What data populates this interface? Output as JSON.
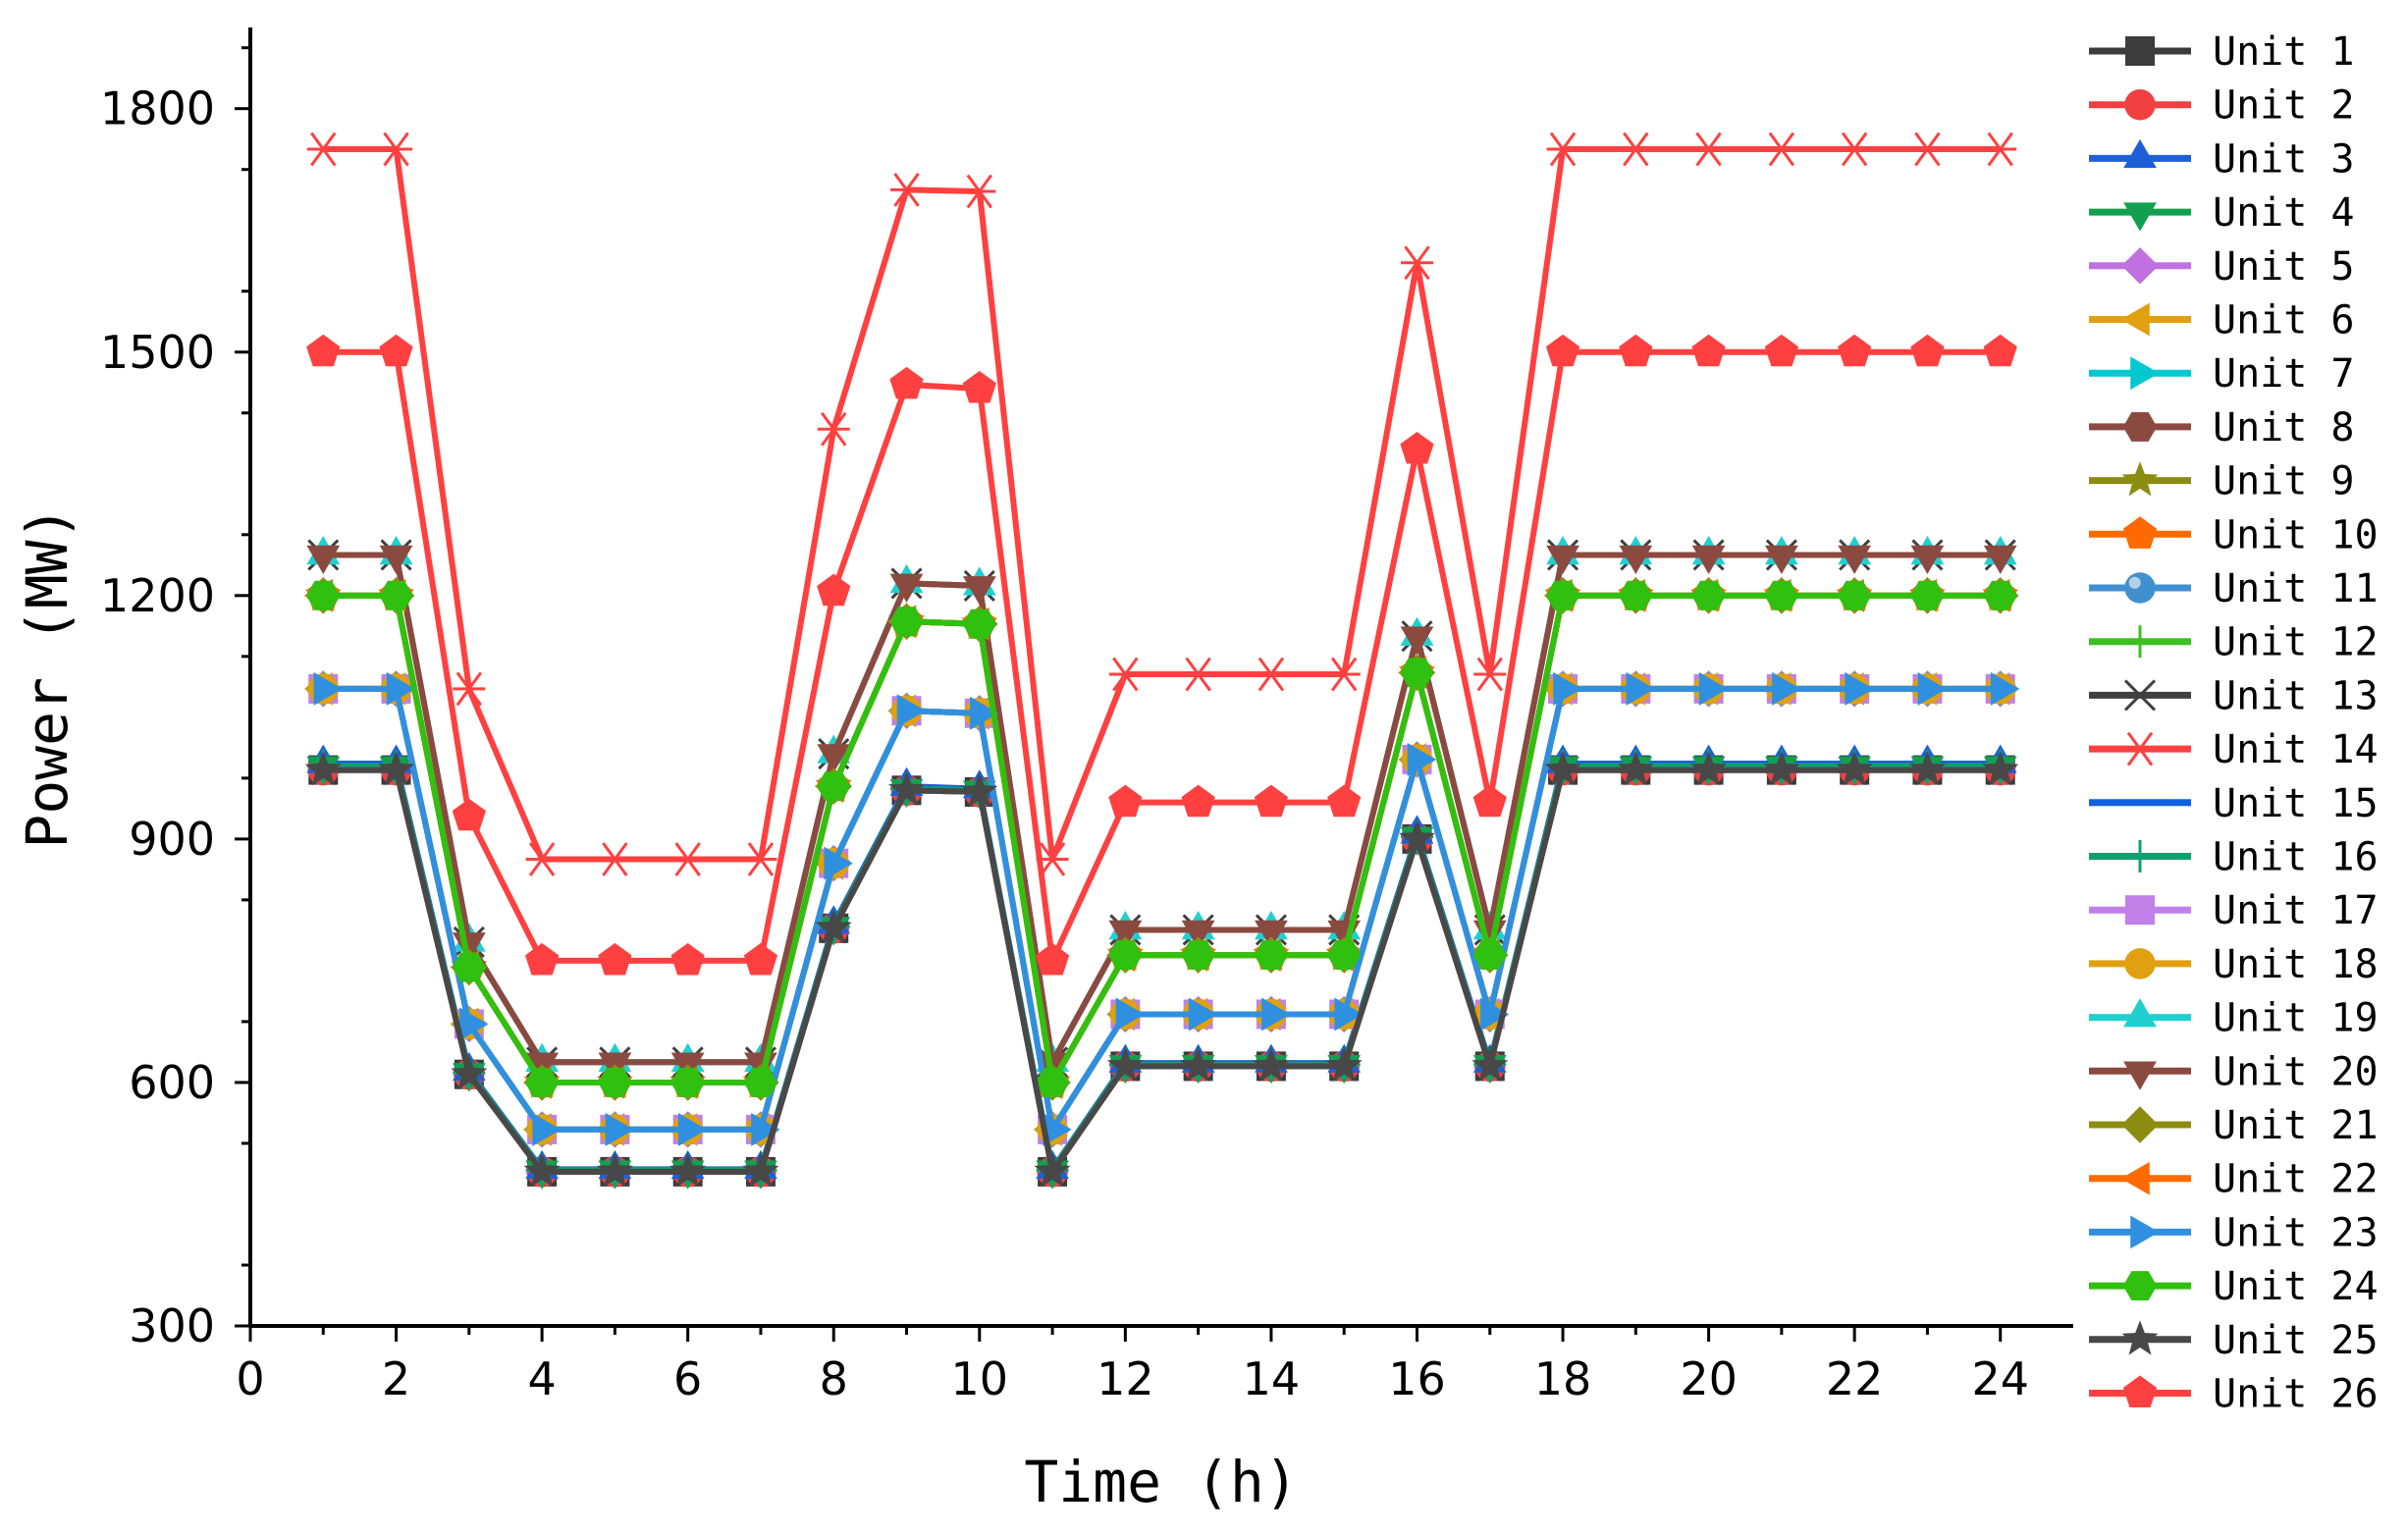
{
  "chart_data": {
    "type": "line",
    "xlabel": "Time (h)",
    "ylabel": "Power (MW)",
    "xlim": [
      0,
      25
    ],
    "ylim": [
      300,
      1900
    ],
    "x_ticks": [
      "0",
      "2",
      "4",
      "6",
      "8",
      "10",
      "12",
      "14",
      "16",
      "18",
      "20",
      "22",
      "24"
    ],
    "y_ticks": [
      "300",
      "600",
      "900",
      "1200",
      "1500",
      "1800"
    ],
    "legend_position": "right",
    "x": [
      1,
      2,
      3,
      4,
      5,
      6,
      7,
      8,
      9,
      10,
      11,
      12,
      13,
      14,
      15,
      16,
      17,
      18,
      19,
      20,
      21,
      22,
      23,
      24
    ],
    "series": [
      {
        "name": "Unit 1",
        "color": "#3c3c3c",
        "marker": "square",
        "values": [
          985,
          985,
          610,
          490,
          490,
          490,
          490,
          790,
          960,
          958,
          490,
          620,
          620,
          620,
          620,
          900,
          620,
          985,
          985,
          985,
          985,
          985,
          985,
          985
        ]
      },
      {
        "name": "Unit 2",
        "color": "#f04040",
        "marker": "circle",
        "values": [
          985,
          985,
          610,
          490,
          490,
          490,
          490,
          790,
          960,
          958,
          490,
          620,
          620,
          620,
          620,
          900,
          620,
          985,
          985,
          985,
          985,
          985,
          985,
          985
        ]
      },
      {
        "name": "Unit 3",
        "color": "#1e5fd8",
        "marker": "triangle-up",
        "values": [
          993,
          993,
          614,
          493,
          493,
          493,
          493,
          795,
          965,
          962,
          493,
          624,
          624,
          624,
          624,
          906,
          624,
          993,
          993,
          993,
          993,
          993,
          993,
          993
        ]
      },
      {
        "name": "Unit 4",
        "color": "#12a050",
        "marker": "triangle-down",
        "values": [
          990,
          990,
          612,
          492,
          492,
          492,
          492,
          792,
          962,
          960,
          492,
          622,
          622,
          622,
          622,
          903,
          622,
          990,
          990,
          990,
          990,
          990,
          990,
          990
        ]
      },
      {
        "name": "Unit 5",
        "color": "#c070e0",
        "marker": "diamond",
        "values": [
          1085,
          1085,
          672,
          542,
          542,
          542,
          542,
          870,
          1058,
          1055,
          542,
          684,
          684,
          684,
          684,
          998,
          684,
          1085,
          1085,
          1085,
          1085,
          1085,
          1085,
          1085
        ]
      },
      {
        "name": "Unit 6",
        "color": "#e0a010",
        "marker": "triangle-left",
        "values": [
          1085,
          1085,
          672,
          542,
          542,
          542,
          542,
          870,
          1058,
          1055,
          542,
          684,
          684,
          684,
          684,
          998,
          684,
          1085,
          1085,
          1085,
          1085,
          1085,
          1085,
          1085
        ]
      },
      {
        "name": "Unit 7",
        "color": "#00c8d0",
        "marker": "triangle-right",
        "values": [
          1085,
          1085,
          672,
          542,
          542,
          542,
          542,
          870,
          1058,
          1055,
          542,
          684,
          684,
          684,
          684,
          998,
          684,
          1085,
          1085,
          1085,
          1085,
          1085,
          1085,
          1085
        ]
      },
      {
        "name": "Unit 8",
        "color": "#8b4a40",
        "marker": "hexagon",
        "values": [
          1200,
          1200,
          742,
          600,
          600,
          600,
          600,
          965,
          1168,
          1165,
          600,
          757,
          757,
          757,
          757,
          1105,
          757,
          1200,
          1200,
          1200,
          1200,
          1200,
          1200,
          1200
        ]
      },
      {
        "name": "Unit 9",
        "color": "#8c8c10",
        "marker": "star",
        "values": [
          1200,
          1200,
          742,
          600,
          600,
          600,
          600,
          965,
          1168,
          1165,
          600,
          757,
          757,
          757,
          757,
          1105,
          757,
          1200,
          1200,
          1200,
          1200,
          1200,
          1200,
          1200
        ]
      },
      {
        "name": "Unit 10",
        "color": "#ff6a00",
        "marker": "pentagon",
        "values": [
          1200,
          1200,
          742,
          600,
          600,
          600,
          600,
          965,
          1168,
          1165,
          600,
          757,
          757,
          757,
          757,
          1105,
          757,
          1200,
          1200,
          1200,
          1200,
          1200,
          1200,
          1200
        ]
      },
      {
        "name": "Unit 11",
        "color": "#4090d0",
        "marker": "sphere",
        "values": [
          1085,
          1085,
          672,
          542,
          542,
          542,
          542,
          870,
          1058,
          1055,
          542,
          684,
          684,
          684,
          684,
          998,
          684,
          1085,
          1085,
          1085,
          1085,
          1085,
          1085,
          1085
        ]
      },
      {
        "name": "Unit 12",
        "color": "#3cc020",
        "marker": "plus",
        "values": [
          1085,
          1085,
          672,
          542,
          542,
          542,
          542,
          870,
          1058,
          1055,
          542,
          684,
          684,
          684,
          684,
          998,
          684,
          1085,
          1085,
          1085,
          1085,
          1085,
          1085,
          1085
        ]
      },
      {
        "name": "Unit 13",
        "color": "#404040",
        "marker": "cross",
        "values": [
          1250,
          1250,
          773,
          625,
          625,
          625,
          625,
          1005,
          1215,
          1212,
          625,
          788,
          788,
          788,
          788,
          1150,
          788,
          1250,
          1250,
          1250,
          1250,
          1250,
          1250,
          1250
        ]
      },
      {
        "name": "Unit 14",
        "color": "#ff4040",
        "marker": "asterisk",
        "values": [
          1750,
          1750,
          1085,
          875,
          875,
          875,
          875,
          1405,
          1700,
          1698,
          875,
          1103,
          1103,
          1103,
          1103,
          1610,
          1103,
          1750,
          1750,
          1750,
          1750,
          1750,
          1750,
          1750
        ]
      },
      {
        "name": "Unit 15",
        "color": "#1060e0",
        "marker": "none",
        "values": [
          990,
          990,
          612,
          492,
          492,
          492,
          492,
          792,
          962,
          960,
          492,
          622,
          622,
          622,
          622,
          903,
          622,
          990,
          990,
          990,
          990,
          990,
          990,
          990
        ]
      },
      {
        "name": "Unit 16",
        "color": "#10a070",
        "marker": "plus",
        "values": [
          990,
          990,
          612,
          492,
          492,
          492,
          492,
          792,
          962,
          960,
          492,
          622,
          622,
          622,
          622,
          903,
          622,
          990,
          990,
          990,
          990,
          990,
          990,
          990
        ]
      },
      {
        "name": "Unit 17",
        "color": "#c080e8",
        "marker": "square",
        "values": [
          1085,
          1085,
          672,
          542,
          542,
          542,
          542,
          870,
          1058,
          1055,
          542,
          684,
          684,
          684,
          684,
          998,
          684,
          1085,
          1085,
          1085,
          1085,
          1085,
          1085,
          1085
        ]
      },
      {
        "name": "Unit 18",
        "color": "#e0a010",
        "marker": "circle",
        "values": [
          1085,
          1085,
          672,
          542,
          542,
          542,
          542,
          870,
          1058,
          1055,
          542,
          684,
          684,
          684,
          684,
          998,
          684,
          1085,
          1085,
          1085,
          1085,
          1085,
          1085,
          1085
        ]
      },
      {
        "name": "Unit 19",
        "color": "#20d0d0",
        "marker": "triangle-up",
        "values": [
          1250,
          1250,
          773,
          625,
          625,
          625,
          625,
          1005,
          1215,
          1212,
          625,
          788,
          788,
          788,
          788,
          1150,
          788,
          1250,
          1250,
          1250,
          1250,
          1250,
          1250,
          1250
        ]
      },
      {
        "name": "Unit 20",
        "color": "#8b4a40",
        "marker": "triangle-down",
        "values": [
          1250,
          1250,
          773,
          625,
          625,
          625,
          625,
          1005,
          1215,
          1212,
          625,
          788,
          788,
          788,
          788,
          1150,
          788,
          1250,
          1250,
          1250,
          1250,
          1250,
          1250,
          1250
        ]
      },
      {
        "name": "Unit 21",
        "color": "#8c8c10",
        "marker": "diamond",
        "values": [
          1200,
          1200,
          742,
          600,
          600,
          600,
          600,
          965,
          1168,
          1165,
          600,
          757,
          757,
          757,
          757,
          1105,
          757,
          1200,
          1200,
          1200,
          1200,
          1200,
          1200,
          1200
        ]
      },
      {
        "name": "Unit 22",
        "color": "#ff6a00",
        "marker": "triangle-left",
        "values": [
          1200,
          1200,
          742,
          600,
          600,
          600,
          600,
          965,
          1168,
          1165,
          600,
          757,
          757,
          757,
          757,
          1105,
          757,
          1200,
          1200,
          1200,
          1200,
          1200,
          1200,
          1200
        ]
      },
      {
        "name": "Unit 23",
        "color": "#3090e0",
        "marker": "triangle-right",
        "values": [
          1085,
          1085,
          672,
          542,
          542,
          542,
          542,
          870,
          1058,
          1055,
          542,
          684,
          684,
          684,
          684,
          998,
          684,
          1085,
          1085,
          1085,
          1085,
          1085,
          1085,
          1085
        ]
      },
      {
        "name": "Unit 24",
        "color": "#30c010",
        "marker": "hexagon",
        "values": [
          1200,
          1200,
          742,
          600,
          600,
          600,
          600,
          965,
          1168,
          1165,
          600,
          757,
          757,
          757,
          757,
          1105,
          757,
          1200,
          1200,
          1200,
          1200,
          1200,
          1200,
          1200
        ]
      },
      {
        "name": "Unit 25",
        "color": "#484848",
        "marker": "star",
        "values": [
          985,
          985,
          610,
          490,
          490,
          490,
          490,
          790,
          960,
          958,
          490,
          620,
          620,
          620,
          620,
          900,
          620,
          985,
          985,
          985,
          985,
          985,
          985,
          985
        ]
      },
      {
        "name": "Unit 26",
        "color": "#ff4040",
        "marker": "pentagon",
        "values": [
          1500,
          1500,
          928,
          750,
          750,
          750,
          750,
          1205,
          1460,
          1455,
          750,
          945,
          945,
          945,
          945,
          1380,
          945,
          1500,
          1500,
          1500,
          1500,
          1500,
          1500,
          1500
        ]
      }
    ]
  }
}
